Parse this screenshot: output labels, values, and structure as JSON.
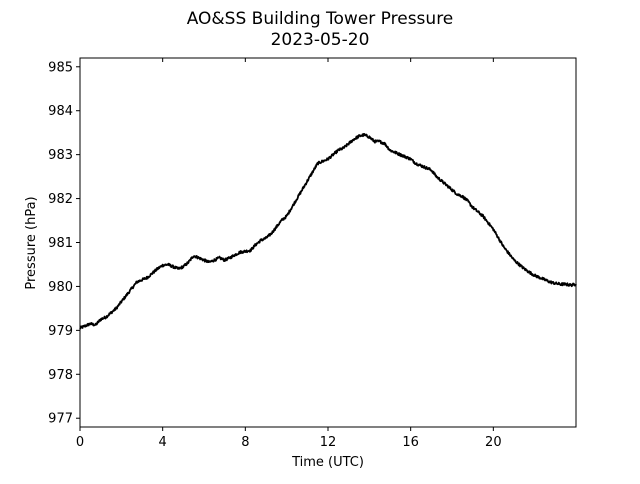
{
  "chart_data": {
    "type": "line",
    "title": "AO&SS Building Tower Pressure",
    "subtitle": "2023-05-20",
    "xlabel": "Time (UTC)",
    "ylabel": "Pressure (hPa)",
    "xlim": [
      0,
      24
    ],
    "ylim": [
      976.8,
      985.2
    ],
    "xticks": [
      0,
      4,
      8,
      12,
      16,
      20
    ],
    "xtick_labels": [
      "0",
      "4",
      "8",
      "12",
      "16",
      "20"
    ],
    "yticks": [
      977,
      978,
      979,
      980,
      981,
      982,
      983,
      984,
      985
    ],
    "ytick_labels": [
      "977",
      "978",
      "979",
      "980",
      "981",
      "982",
      "983",
      "984",
      "985"
    ],
    "grid": false,
    "series": [
      {
        "color": "#000000",
        "x": [
          0.0,
          0.25,
          0.5,
          0.75,
          1.0,
          1.25,
          1.5,
          1.75,
          2.0,
          2.25,
          2.5,
          2.75,
          3.0,
          3.25,
          3.5,
          3.75,
          4.0,
          4.25,
          4.5,
          4.75,
          5.0,
          5.25,
          5.5,
          5.75,
          6.0,
          6.25,
          6.5,
          6.75,
          7.0,
          7.25,
          7.5,
          7.75,
          8.0,
          8.25,
          8.5,
          8.75,
          9.0,
          9.25,
          9.5,
          9.75,
          10.0,
          10.25,
          10.5,
          10.75,
          11.0,
          11.25,
          11.5,
          11.75,
          12.0,
          12.25,
          12.5,
          12.75,
          13.0,
          13.25,
          13.5,
          13.75,
          14.0,
          14.25,
          14.5,
          14.75,
          15.0,
          15.25,
          15.5,
          15.75,
          16.0,
          16.25,
          16.5,
          16.75,
          17.0,
          17.25,
          17.5,
          17.75,
          18.0,
          18.25,
          18.5,
          18.75,
          19.0,
          19.25,
          19.5,
          19.75,
          20.0,
          20.25,
          20.5,
          20.75,
          21.0,
          21.25,
          21.5,
          21.75,
          22.0,
          22.25,
          22.5,
          22.75,
          23.0,
          23.25,
          23.5,
          23.75,
          24.0
        ],
        "values": [
          979.05,
          979.1,
          979.15,
          979.12,
          979.25,
          979.3,
          979.4,
          979.5,
          979.65,
          979.8,
          979.95,
          980.1,
          980.15,
          980.2,
          980.3,
          980.4,
          980.48,
          980.5,
          980.45,
          980.4,
          980.45,
          980.55,
          980.7,
          980.65,
          980.6,
          980.55,
          980.6,
          980.65,
          980.6,
          980.65,
          980.72,
          980.78,
          980.8,
          980.82,
          980.95,
          981.05,
          981.1,
          981.2,
          981.35,
          981.5,
          981.6,
          981.8,
          982.0,
          982.2,
          982.4,
          982.6,
          982.8,
          982.85,
          982.9,
          983.0,
          983.1,
          983.15,
          983.25,
          983.35,
          983.42,
          983.45,
          983.4,
          983.3,
          983.3,
          983.25,
          983.1,
          983.05,
          983.0,
          982.95,
          982.9,
          982.8,
          982.75,
          982.7,
          982.65,
          982.5,
          982.4,
          982.3,
          982.2,
          982.1,
          982.05,
          981.95,
          981.8,
          981.7,
          981.6,
          981.45,
          981.3,
          981.1,
          980.9,
          980.75,
          980.6,
          980.5,
          980.4,
          980.32,
          980.25,
          980.2,
          980.15,
          980.1,
          980.07,
          980.05,
          980.05,
          980.03,
          980.05
        ]
      }
    ]
  }
}
